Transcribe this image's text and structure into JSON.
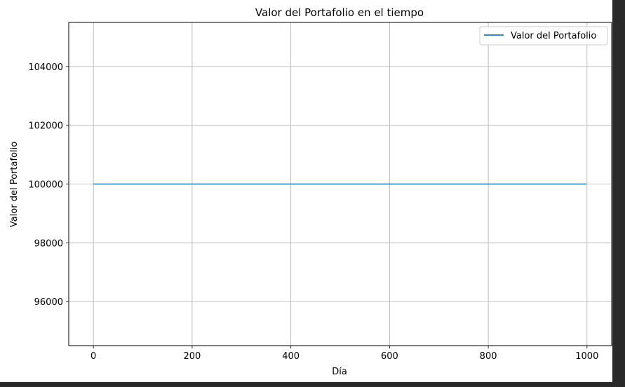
{
  "chart_data": {
    "type": "line",
    "title": "Valor del Portafolio en el tiempo",
    "xlabel": "Día",
    "ylabel": "Valor del Portafolio",
    "xlim": [
      -50,
      1050
    ],
    "ylim": [
      94500,
      105500
    ],
    "xticks": [
      0,
      200,
      400,
      600,
      800,
      1000
    ],
    "yticks": [
      96000,
      98000,
      100000,
      102000,
      104000
    ],
    "xtick_labels": [
      "0",
      "200",
      "400",
      "600",
      "800",
      "1000"
    ],
    "ytick_labels": [
      "96000",
      "98000",
      "100000",
      "102000",
      "104000"
    ],
    "grid": true,
    "legend": {
      "position": "top-right"
    },
    "series": [
      {
        "name": "Valor del Portafolio",
        "color": "#1f77b4",
        "x": [
          0,
          999
        ],
        "y": [
          100000,
          100000
        ]
      }
    ]
  }
}
